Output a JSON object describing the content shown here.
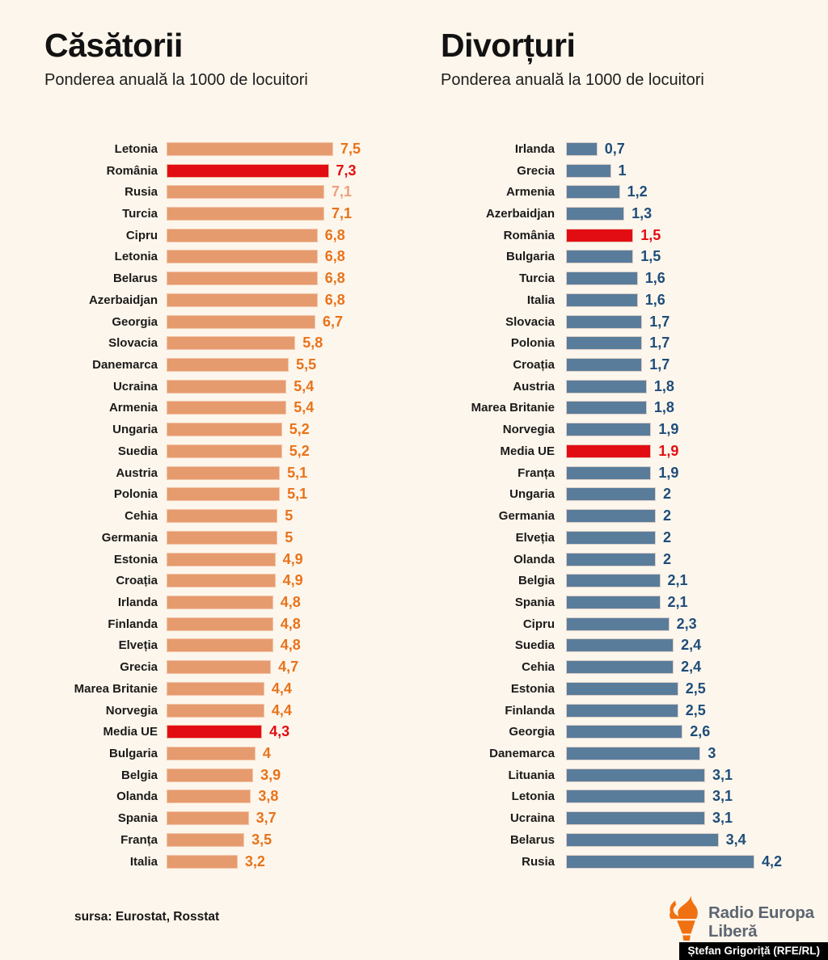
{
  "chart_data": [
    {
      "type": "bar",
      "orientation": "horizontal",
      "title": "Căsătorii",
      "subtitle": "Ponderea anuală la 1000 de locuitori",
      "axis_max": 7.5,
      "bar_color": "#e69b6e",
      "highlight_bar_color": "#e20d13",
      "value_color": "#e8731b",
      "highlight_value_color": "#e20d13",
      "rows": [
        {
          "label": "Letonia",
          "display": "7,5",
          "value": 7.5
        },
        {
          "label": "România",
          "display": "7,3",
          "value": 7.3,
          "highlight": true
        },
        {
          "label": "Rusia",
          "display": "7,1",
          "value": 7.1,
          "value_color": "#eba07d"
        },
        {
          "label": "Turcia",
          "display": "7,1",
          "value": 7.1
        },
        {
          "label": "Cipru",
          "display": "6,8",
          "value": 6.8
        },
        {
          "label": "Letonia",
          "display": "6,8",
          "value": 6.8
        },
        {
          "label": "Belarus",
          "display": "6,8",
          "value": 6.8
        },
        {
          "label": "Azerbaidjan",
          "display": "6,8",
          "value": 6.8
        },
        {
          "label": "Georgia",
          "display": "6,7",
          "value": 6.7
        },
        {
          "label": "Slovacia",
          "display": "5,8",
          "value": 5.8
        },
        {
          "label": "Danemarca",
          "display": "5,5",
          "value": 5.5
        },
        {
          "label": "Ucraina",
          "display": "5,4",
          "value": 5.4
        },
        {
          "label": "Armenia",
          "display": "5,4",
          "value": 5.4
        },
        {
          "label": "Ungaria",
          "display": "5,2",
          "value": 5.2
        },
        {
          "label": "Suedia",
          "display": "5,2",
          "value": 5.2
        },
        {
          "label": "Austria",
          "display": "5,1",
          "value": 5.1
        },
        {
          "label": "Polonia",
          "display": "5,1",
          "value": 5.1
        },
        {
          "label": "Cehia",
          "display": "5",
          "value": 5
        },
        {
          "label": "Germania",
          "display": "5",
          "value": 5
        },
        {
          "label": "Estonia",
          "display": "4,9",
          "value": 4.9
        },
        {
          "label": "Croația",
          "display": "4,9",
          "value": 4.9
        },
        {
          "label": "Irlanda",
          "display": "4,8",
          "value": 4.8
        },
        {
          "label": "Finlanda",
          "display": "4,8",
          "value": 4.8
        },
        {
          "label": "Elveția",
          "display": "4,8",
          "value": 4.8
        },
        {
          "label": "Grecia",
          "display": "4,7",
          "value": 4.7
        },
        {
          "label": "Marea Britanie",
          "display": "4,4",
          "value": 4.4
        },
        {
          "label": "Norvegia",
          "display": "4,4",
          "value": 4.4
        },
        {
          "label": "Media UE",
          "display": "4,3",
          "value": 4.3,
          "highlight": true
        },
        {
          "label": "Bulgaria",
          "display": "4",
          "value": 4
        },
        {
          "label": "Belgia",
          "display": "3,9",
          "value": 3.9
        },
        {
          "label": "Olanda",
          "display": "3,8",
          "value": 3.8
        },
        {
          "label": "Spania",
          "display": "3,7",
          "value": 3.7
        },
        {
          "label": "Franța",
          "display": "3,5",
          "value": 3.5
        },
        {
          "label": "Italia",
          "display": "3,2",
          "value": 3.2
        }
      ]
    },
    {
      "type": "bar",
      "orientation": "horizontal",
      "title": "Divorțuri",
      "subtitle": "Ponderea anuală la 1000 de locuitori",
      "axis_max": 4.2,
      "bar_color": "#5a7c9b",
      "highlight_bar_color": "#e20d13",
      "value_color": "#1f4d7a",
      "highlight_value_color": "#e20d13",
      "rows": [
        {
          "label": "Irlanda",
          "display": "0,7",
          "value": 0.7
        },
        {
          "label": "Grecia",
          "display": "1",
          "value": 1
        },
        {
          "label": "Armenia",
          "display": "1,2",
          "value": 1.2
        },
        {
          "label": "Azerbaidjan",
          "display": "1,3",
          "value": 1.3
        },
        {
          "label": "România",
          "display": "1,5",
          "value": 1.5,
          "highlight": true
        },
        {
          "label": "Bulgaria",
          "display": "1,5",
          "value": 1.5
        },
        {
          "label": "Turcia",
          "display": "1,6",
          "value": 1.6
        },
        {
          "label": "Italia",
          "display": "1,6",
          "value": 1.6
        },
        {
          "label": "Slovacia",
          "display": "1,7",
          "value": 1.7
        },
        {
          "label": "Polonia",
          "display": "1,7",
          "value": 1.7
        },
        {
          "label": "Croația",
          "display": "1,7",
          "value": 1.7
        },
        {
          "label": "Austria",
          "display": "1,8",
          "value": 1.8
        },
        {
          "label": "Marea Britanie",
          "display": "1,8",
          "value": 1.8
        },
        {
          "label": "Norvegia",
          "display": "1,9",
          "value": 1.9
        },
        {
          "label": "Media UE",
          "display": "1,9",
          "value": 1.9,
          "highlight": true
        },
        {
          "label": "Franța",
          "display": "1,9",
          "value": 1.9
        },
        {
          "label": "Ungaria",
          "display": "2",
          "value": 2
        },
        {
          "label": "Germania",
          "display": "2",
          "value": 2
        },
        {
          "label": "Elveția",
          "display": "2",
          "value": 2
        },
        {
          "label": "Olanda",
          "display": "2",
          "value": 2
        },
        {
          "label": "Belgia",
          "display": "2,1",
          "value": 2.1
        },
        {
          "label": "Spania",
          "display": "2,1",
          "value": 2.1
        },
        {
          "label": "Cipru",
          "display": "2,3",
          "value": 2.3
        },
        {
          "label": "Suedia",
          "display": "2,4",
          "value": 2.4
        },
        {
          "label": "Cehia",
          "display": "2,4",
          "value": 2.4
        },
        {
          "label": "Estonia",
          "display": "2,5",
          "value": 2.5
        },
        {
          "label": "Finlanda",
          "display": "2,5",
          "value": 2.5
        },
        {
          "label": "Georgia",
          "display": "2,6",
          "value": 2.6
        },
        {
          "label": "Danemarca",
          "display": "3",
          "value": 3
        },
        {
          "label": "Lituania",
          "display": "3,1",
          "value": 3.1
        },
        {
          "label": "Letonia",
          "display": "3,1",
          "value": 3.1
        },
        {
          "label": "Ucraina",
          "display": "3,1",
          "value": 3.1
        },
        {
          "label": "Belarus",
          "display": "3,4",
          "value": 3.4
        },
        {
          "label": "Rusia",
          "display": "4,2",
          "value": 4.2,
          "outlined": true
        }
      ]
    }
  ],
  "layout": {
    "bar_area_widths": [
      206,
      233
    ]
  },
  "colors": {
    "background": "#fdf6ec",
    "marriage_bar": "#e69b6e",
    "divorce_bar": "#5a7c9b",
    "highlight": "#e20d13",
    "divorce_value_text": "#1f4d7a",
    "marriage_value_text": "#e8731b",
    "logo_orange": "#f07112",
    "logo_gray": "#5d6672"
  },
  "footer": {
    "source": "sursa: Eurostat, Rosstat",
    "logo_line1": "Radio Europa",
    "logo_line2": "Liberă",
    "credit": "Ștefan Grigoriță (RFE/RL)"
  }
}
